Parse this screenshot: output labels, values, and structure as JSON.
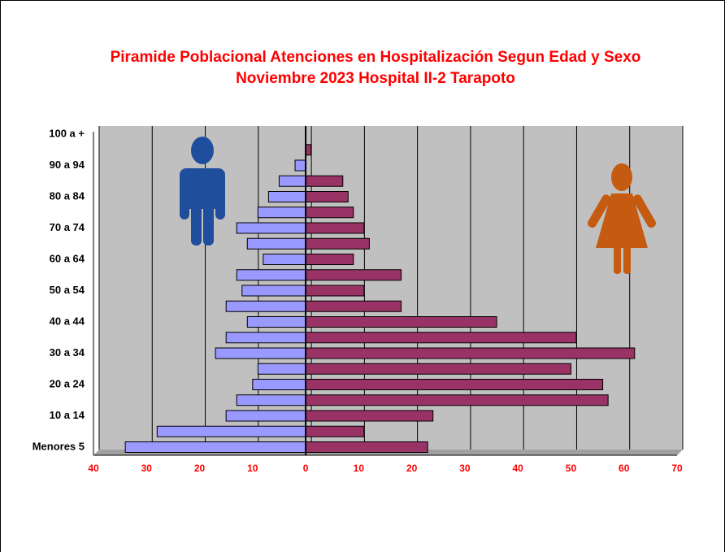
{
  "chart_data": {
    "type": "pyramid",
    "title": [
      "Piramide Poblacional  Atenciones en Hospitalización Segun Edad y Sexo",
      "Noviembre 2023  Hospital II-2 Tarapoto"
    ],
    "categories": [
      "Menores 5",
      null,
      "10 a 14",
      null,
      "20 a 24",
      null,
      "30 a 34",
      null,
      "40 a 44",
      null,
      "50 a 54",
      null,
      "60 a 64",
      null,
      "70 a 74",
      null,
      "80 a 84",
      null,
      "90 a 94",
      null,
      "100 a +"
    ],
    "series": [
      {
        "color": "#9999ff",
        "values": [
          -34,
          -28,
          -15,
          -13,
          -10,
          -9,
          -17,
          -15,
          -11,
          -15,
          -12,
          -13,
          -8,
          -11,
          -13,
          -9,
          -7,
          -5,
          -2,
          0,
          0
        ]
      },
      {
        "color": "#993366",
        "values": [
          23,
          11,
          24,
          57,
          56,
          50,
          62,
          51,
          36,
          18,
          11,
          18,
          9,
          12,
          11,
          9,
          8,
          7,
          0,
          1,
          0
        ]
      }
    ],
    "xlim": [
      -40,
      70
    ],
    "xticks": [
      {
        "value": -40,
        "label": "40"
      },
      {
        "value": -30,
        "label": "30"
      },
      {
        "value": -20,
        "label": "20"
      },
      {
        "value": -10,
        "label": "10"
      },
      0,
      10,
      20,
      30,
      40,
      50,
      60,
      70
    ],
    "grid": true
  }
}
